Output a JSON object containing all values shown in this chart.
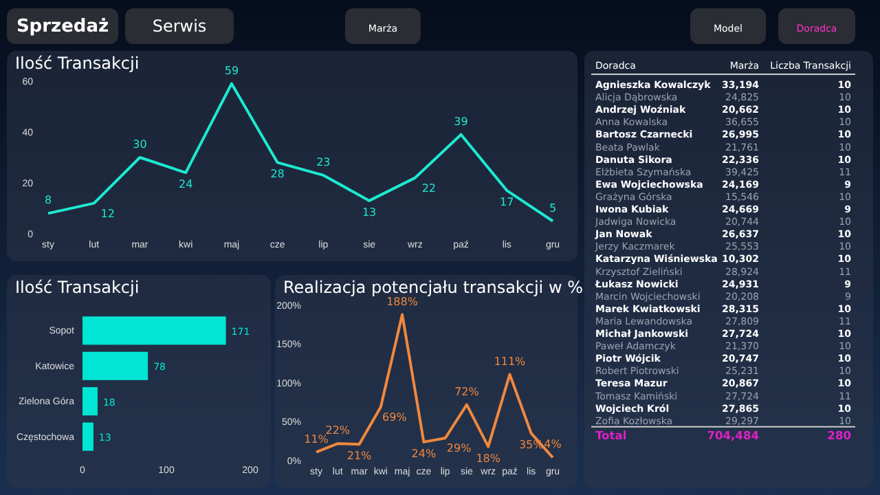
{
  "chart_data": [
    {
      "type": "other",
      "annotations": [
        "Sprzedaż",
        "Serwis",
        "Marża",
        "Model",
        "Doradca"
      ]
    },
    {
      "type": "line",
      "title": "Ilość Transakcji",
      "categories": [
        "sty",
        "lut",
        "mar",
        "kwi",
        "maj",
        "cze",
        "lip",
        "sie",
        "wrz",
        "paź",
        "lis",
        "gru"
      ],
      "series": [
        {
          "color": "#1de9d0",
          "values": [
            8,
            12,
            30,
            24,
            59,
            28,
            23,
            13,
            22,
            39,
            17,
            5
          ]
        }
      ],
      "ylim": [
        0,
        60
      ],
      "yticks": [
        0,
        20,
        40,
        60
      ],
      "data_labels": true,
      "marker": "none"
    },
    {
      "type": "bar",
      "orientation": "horizontal",
      "title": "Ilość Transakcji",
      "categories": [
        "Sopot",
        "Katowice",
        "Zielona Góra",
        "Częstochowa"
      ],
      "series": [
        {
          "color": "#00e5d4",
          "values": [
            171,
            78,
            18,
            13
          ]
        }
      ],
      "xlim": [
        0,
        200
      ],
      "xticks": [
        0,
        100,
        200
      ],
      "data_labels": true
    },
    {
      "type": "line",
      "title": "Realizacja potencjału transakcji w %",
      "categories": [
        "sty",
        "lut",
        "mar",
        "kwi",
        "maj",
        "cze",
        "lip",
        "sie",
        "wrz",
        "paź",
        "lis",
        "gru"
      ],
      "series": [
        {
          "color": "#f0883e",
          "values": [
            11,
            22,
            21,
            69,
            188,
            24,
            29,
            72,
            18,
            111,
            35,
            4
          ],
          "value_labels": [
            "11%",
            "22%",
            "21%",
            "69%",
            "188%",
            "24%",
            "29%",
            "72%",
            "18%",
            "111%",
            "35%",
            "4%"
          ]
        }
      ],
      "ylim": [
        0,
        200
      ],
      "yticks": [
        {
          "value": 0,
          "label": "0%"
        },
        {
          "value": 50,
          "label": "50%"
        },
        {
          "value": 100,
          "label": "100%"
        },
        {
          "value": 150,
          "label": "150%"
        },
        {
          "value": 200,
          "label": "200%"
        }
      ],
      "marker": "none"
    },
    {
      "type": "other",
      "xlabel": "Doradca",
      "categories": [
        "Agnieszka Kowalczyk",
        "Alicja Dąbrowska",
        "Andrzej Woźniak",
        "Anna Kowalska",
        "Bartosz Czarnecki",
        "Beata Pawlak",
        "Danuta Sikora",
        "Elżbieta Szymańska",
        "Ewa Wojciechowska",
        "Grażyna Górska",
        "Iwona Kubiak",
        "Jadwiga Nowicka",
        "Jan Nowak",
        "Jerzy Kaczmarek",
        "Katarzyna Wiśniewska",
        "Krzysztof Zieliński",
        "Łukasz Nowicki",
        "Marcin Wojciechowski",
        "Marek Kwiatkowski",
        "Maria Lewandowska",
        "Michał Jankowski",
        "Paweł Adamczyk",
        "Piotr Wójcik",
        "Robert Piotrowski",
        "Teresa Mazur",
        "Tomasz Kamiński",
        "Wojciech Król",
        "Zofia Kozłowska"
      ],
      "series": [
        {
          "name": "Marża",
          "values": [
            33194,
            24825,
            20662,
            36655,
            26995,
            21761,
            22336,
            39425,
            24169,
            15546,
            24669,
            20744,
            26637,
            25553,
            10302,
            28924,
            24931,
            20208,
            28315,
            27809,
            27724,
            21370,
            20747,
            25231,
            20867,
            27724,
            27865,
            29297
          ],
          "value_labels": [
            "33,194",
            "24,825",
            "20,662",
            "36,655",
            "26,995",
            "21,761",
            "22,336",
            "39,425",
            "24,169",
            "15,546",
            "24,669",
            "20,744",
            "26,637",
            "25,553",
            "10,302",
            "28,924",
            "24,931",
            "20,208",
            "28,315",
            "27,809",
            "27,724",
            "21,370",
            "20,747",
            "25,231",
            "20,867",
            "27,724",
            "27,865",
            "29,297"
          ]
        },
        {
          "name": "Liczba Transakcji",
          "values": [
            10,
            10,
            10,
            10,
            10,
            10,
            10,
            11,
            9,
            10,
            9,
            10,
            10,
            10,
            10,
            11,
            9,
            9,
            10,
            11,
            10,
            10,
            10,
            10,
            10,
            11,
            10,
            10
          ],
          "value_labels": [
            "10",
            "10",
            "10",
            "10",
            "10",
            "10",
            "10",
            "11",
            "9",
            "10",
            "9",
            "10",
            "10",
            "10",
            "10",
            "11",
            "9",
            "9",
            "10",
            "11",
            "10",
            "10",
            "10",
            "10",
            "10",
            "11",
            "10",
            "10"
          ]
        }
      ],
      "data_labels": true,
      "annotations": [
        "Total"
      ],
      "totals": [
        "704,484",
        "280"
      ]
    }
  ]
}
